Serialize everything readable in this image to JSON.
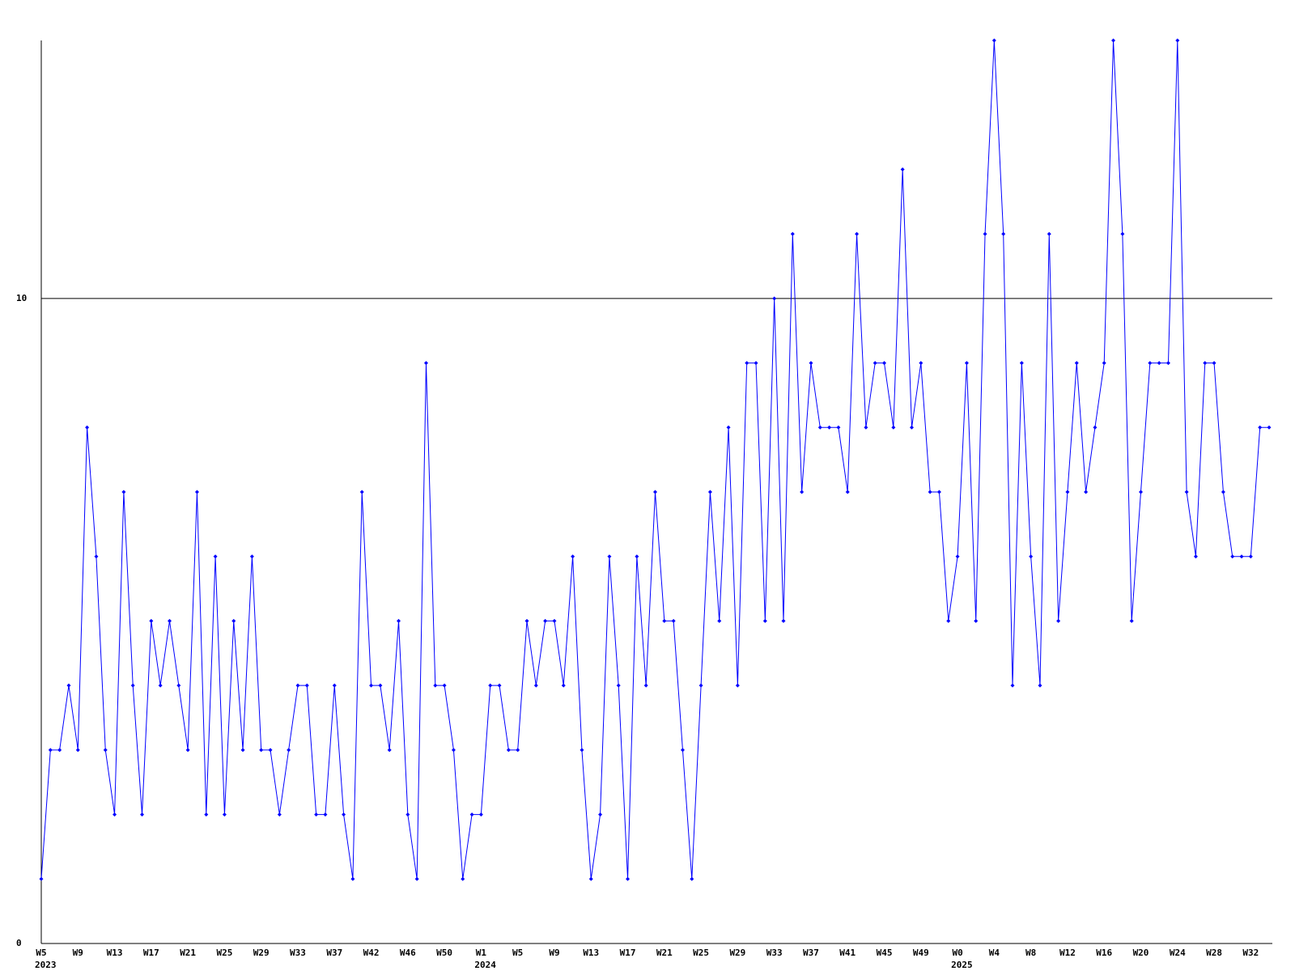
{
  "chart_data": {
    "type": "line",
    "color": "#0000ff",
    "grid": true,
    "ylim": [
      0,
      14
    ],
    "yticks": [
      0,
      10
    ],
    "categories": [
      "W5",
      null,
      null,
      null,
      "W9",
      null,
      null,
      null,
      "W13",
      null,
      null,
      null,
      "W17",
      null,
      null,
      null,
      "W21",
      null,
      null,
      null,
      "W25",
      null,
      null,
      null,
      "W29",
      null,
      null,
      null,
      "W33",
      null,
      null,
      null,
      "W37",
      null,
      null,
      null,
      "W42",
      null,
      null,
      null,
      "W46",
      null,
      null,
      null,
      "W50",
      null,
      null,
      null,
      "W1",
      null,
      null,
      null,
      "W5",
      null,
      null,
      null,
      "W9",
      null,
      null,
      null,
      "W13",
      null,
      null,
      null,
      "W17",
      null,
      null,
      null,
      "W21",
      null,
      null,
      null,
      "W25",
      null,
      null,
      null,
      "W29",
      null,
      null,
      null,
      "W33",
      null,
      null,
      null,
      "W37",
      null,
      null,
      null,
      "W41",
      null,
      null,
      null,
      "W45",
      null,
      null,
      null,
      "W49",
      null,
      null,
      null,
      "W0",
      null,
      null,
      null,
      "W4",
      null,
      null,
      null,
      "W8",
      null,
      null,
      null,
      "W12",
      null,
      null,
      null,
      "W16",
      null,
      null,
      null,
      "W20",
      null,
      null,
      null,
      "W24",
      null,
      null,
      null,
      "W28",
      null,
      null,
      null,
      "W32",
      null,
      null
    ],
    "years": [
      "2023",
      null,
      null,
      null,
      null,
      null,
      null,
      null,
      null,
      null,
      null,
      null,
      null,
      null,
      null,
      null,
      null,
      null,
      null,
      null,
      null,
      null,
      null,
      null,
      null,
      null,
      null,
      null,
      null,
      null,
      null,
      null,
      null,
      null,
      null,
      null,
      null,
      null,
      null,
      null,
      null,
      null,
      null,
      null,
      null,
      null,
      null,
      null,
      "2024",
      null,
      null,
      null,
      null,
      null,
      null,
      null,
      null,
      null,
      null,
      null,
      null,
      null,
      null,
      null,
      null,
      null,
      null,
      null,
      null,
      null,
      null,
      null,
      null,
      null,
      null,
      null,
      null,
      null,
      null,
      null,
      null,
      null,
      null,
      null,
      null,
      null,
      null,
      null,
      null,
      null,
      null,
      null,
      null,
      null,
      null,
      null,
      null,
      null,
      null,
      null,
      "2025",
      null,
      null,
      null,
      null,
      null,
      null,
      null,
      null,
      null,
      null,
      null,
      null,
      null,
      null,
      null,
      null,
      null,
      null,
      null,
      null,
      null,
      null,
      null,
      null,
      null,
      null,
      null,
      null,
      null,
      null,
      null,
      null,
      null,
      null
    ],
    "values": [
      1,
      3,
      3,
      4,
      3,
      8,
      6,
      3,
      2,
      7,
      4,
      2,
      5,
      4,
      5,
      4,
      3,
      7,
      2,
      6,
      2,
      5,
      3,
      6,
      3,
      3,
      2,
      3,
      4,
      4,
      2,
      2,
      4,
      2,
      1,
      7,
      4,
      4,
      3,
      5,
      2,
      1,
      9,
      4,
      4,
      3,
      1,
      2,
      2,
      4,
      4,
      3,
      3,
      5,
      4,
      5,
      5,
      4,
      6,
      3,
      1,
      2,
      6,
      4,
      1,
      6,
      4,
      7,
      5,
      5,
      3,
      1,
      4,
      7,
      5,
      8,
      4,
      9,
      9,
      5,
      10,
      5,
      11,
      7,
      9,
      8,
      8,
      8,
      7,
      11,
      8,
      9,
      9,
      8,
      12,
      8,
      9,
      7,
      7,
      5,
      6,
      9,
      5,
      11,
      14,
      11,
      4,
      9,
      6,
      4,
      11,
      5,
      7,
      9,
      7,
      8,
      9,
      14,
      11,
      5,
      7,
      9,
      9,
      9,
      14,
      7,
      6,
      9,
      9,
      7,
      6,
      6,
      6,
      8,
      8
    ]
  }
}
